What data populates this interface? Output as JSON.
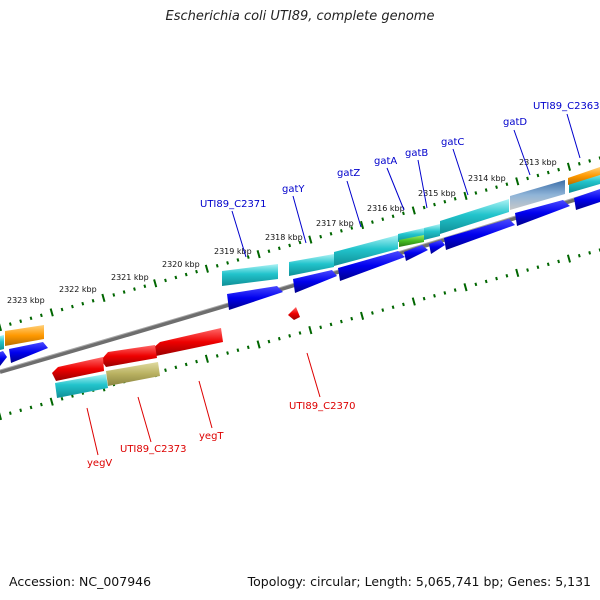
{
  "title": "Escherichia coli UTI89, complete genome",
  "footer": {
    "accession": "Accession: NC_007946",
    "info": "Topology: circular; Length: 5,065,741 bp; Genes: 5,131"
  },
  "colors": {
    "plus_label": "#0000cc",
    "minus_label": "#dd0000",
    "blue_arrow": "#0000ee",
    "red_arrow": "#ee0000",
    "cyan_box": "#22c4cc",
    "orange_box": "#ff9900",
    "olive_box": "#b8b060",
    "tick_green": "#006600",
    "backbone": "#777777"
  },
  "kbp_labels": [
    "2313 kbp",
    "2314 kbp",
    "2315 kbp",
    "2316 kbp",
    "2317 kbp",
    "2318 kbp",
    "2319 kbp",
    "2320 kbp",
    "2321 kbp",
    "2322 kbp",
    "2323 kbp"
  ],
  "plus_genes": [
    "UTI89_C2363",
    "gatD",
    "gatC",
    "gatB",
    "gatA",
    "gatZ",
    "gatY",
    "UTI89_C2371"
  ],
  "minus_genes": [
    "UTI89_C2370",
    "yegT",
    "UTI89_C2373",
    "yegV"
  ]
}
